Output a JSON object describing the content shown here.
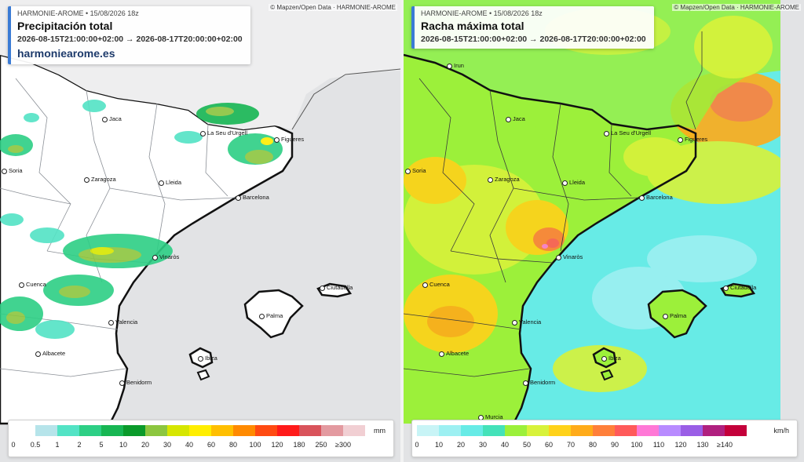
{
  "left": {
    "source": "HARMONIE-AROME • 15/08/2026 18z",
    "title": "Precipitación total",
    "range": "2026-08-15T21:00:00+02:00 → 2026-08-17T20:00:00+02:00",
    "site": "harmoniearome.es",
    "attribution": "© Mapzen/Open Data · HARMONIE-AROME",
    "legend": {
      "unit": "mm",
      "colors": [
        "#ffffff",
        "#b6e4ea",
        "#53e3c5",
        "#2dcf85",
        "#17b653",
        "#0a9a2a",
        "#8cc63f",
        "#d6e600",
        "#ffee00",
        "#ffbf00",
        "#ff8a00",
        "#ff4a12",
        "#ff1a1a",
        "#d9535b",
        "#e39aa0",
        "#f1cfd3"
      ],
      "labels": [
        "0",
        "0.5",
        "1",
        "2",
        "5",
        "10",
        "20",
        "30",
        "40",
        "60",
        "80",
        "100",
        "120",
        "180",
        "250",
        "≥300"
      ]
    }
  },
  "right": {
    "source": "HARMONIE-AROME • 15/08/2026 18z",
    "title": "Racha máxima total",
    "range": "2026-08-15T21:00:00+02:00 → 2026-08-17T20:00:00+02:00",
    "attribution": "© Mapzen/Open Data · HARMONIE-AROME",
    "legend": {
      "unit": "km/h",
      "colors": [
        "#c8f4f6",
        "#9df0f2",
        "#67ebe6",
        "#44e2b9",
        "#9cf03a",
        "#d8f23a",
        "#ffd21a",
        "#ffab1a",
        "#ff7f3a",
        "#ff5a5a",
        "#ff78d6",
        "#b88bff",
        "#9a5ee6",
        "#b0207f",
        "#c4003a"
      ],
      "labels": [
        "0",
        "10",
        "20",
        "30",
        "40",
        "50",
        "60",
        "70",
        "80",
        "90",
        "100",
        "110",
        "120",
        "130",
        "≥140"
      ]
    }
  },
  "cities": {
    "irun": "Irun",
    "jaca": "Jaca",
    "seu": "La Seu d'Urgell",
    "figueres": "Figueres",
    "soria": "Soria",
    "zaragoza": "Zaragoza",
    "lleida": "Lleida",
    "barcelona": "Barcelona",
    "vinaros": "Vinaròs",
    "cuenca": "Cuenca",
    "ciutadella": "Ciutadella",
    "palma": "Palma",
    "valencia": "Valencia",
    "ibiza": "Ibiza",
    "albacete": "Albacete",
    "benidorm": "Benidorm",
    "murcia": "Murcia"
  }
}
